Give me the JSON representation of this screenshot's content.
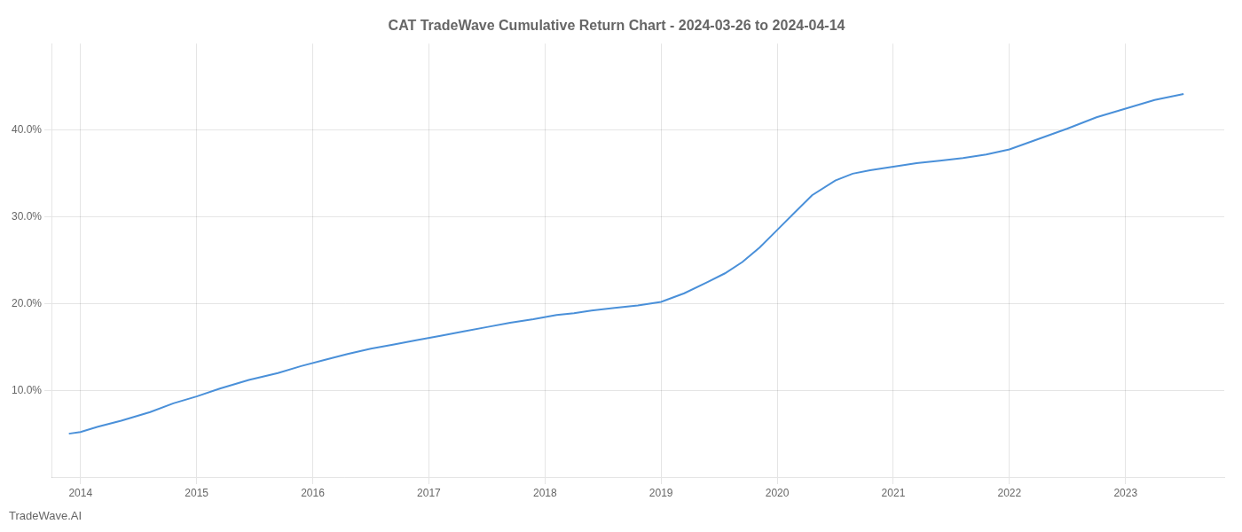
{
  "chart_data": {
    "type": "line",
    "title": "CAT TradeWave Cumulative Return Chart - 2024-03-26 to 2024-04-14",
    "annotations": [
      "TradeWave.AI"
    ],
    "x": [
      2013.9,
      2014.0,
      2014.15,
      2014.35,
      2014.6,
      2014.8,
      2015.0,
      2015.2,
      2015.45,
      2015.7,
      2015.9,
      2016.1,
      2016.3,
      2016.5,
      2016.7,
      2016.9,
      2017.1,
      2017.3,
      2017.5,
      2017.7,
      2017.9,
      2018.1,
      2018.25,
      2018.4,
      2018.6,
      2018.8,
      2019.0,
      2019.2,
      2019.4,
      2019.55,
      2019.7,
      2019.85,
      2020.0,
      2020.15,
      2020.3,
      2020.5,
      2020.65,
      2020.8,
      2021.0,
      2021.2,
      2021.4,
      2021.6,
      2021.8,
      2022.0,
      2022.25,
      2022.5,
      2022.75,
      2023.0,
      2023.25,
      2023.5
    ],
    "values": [
      5.0,
      5.2,
      5.8,
      6.5,
      7.5,
      8.5,
      9.3,
      10.2,
      11.2,
      12.0,
      12.8,
      13.5,
      14.2,
      14.8,
      15.3,
      15.8,
      16.3,
      16.8,
      17.3,
      17.8,
      18.2,
      18.7,
      18.9,
      19.2,
      19.5,
      19.8,
      20.2,
      21.2,
      22.5,
      23.5,
      24.8,
      26.5,
      28.5,
      30.5,
      32.5,
      34.2,
      35.0,
      35.4,
      35.8,
      36.2,
      36.5,
      36.8,
      37.2,
      37.8,
      39.0,
      40.2,
      41.5,
      42.5,
      43.5,
      44.2
    ],
    "color": "#4a90d9",
    "xlim": [
      2013.75,
      2023.85
    ],
    "xticks": [
      2014,
      2015,
      2016,
      2017,
      2018,
      2019,
      2020,
      2021,
      2022,
      2023
    ],
    "ylim": [
      0,
      50
    ],
    "yticks": [
      {
        "value": 10,
        "label": "10.0%"
      },
      {
        "value": 20,
        "label": "20.0%"
      },
      {
        "value": 30,
        "label": "30.0%"
      },
      {
        "value": 40,
        "label": "40.0%"
      }
    ],
    "grid": true
  }
}
